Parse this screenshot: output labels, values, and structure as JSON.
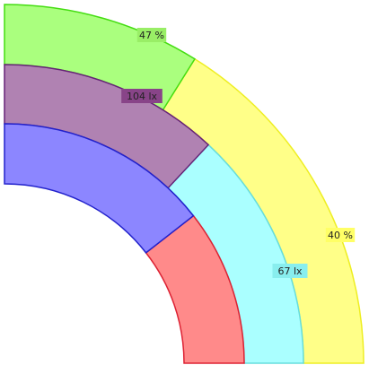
{
  "chart_data": {
    "type": "radial_gauge",
    "angle_range": [
      0,
      90
    ],
    "series": [
      {
        "ring": "outer",
        "value_pct": 47,
        "label": "47 %",
        "split_angle_deg": 58,
        "colors": {
          "first": "#aaff7e",
          "first_stroke": "#44dd11",
          "second": "#ffff88",
          "second_stroke": "#eeee22"
        },
        "label_bg": "#99ee66"
      },
      {
        "ring": "middle",
        "value": 104,
        "unit": "lx",
        "label": "104 lx",
        "second_label": "67 lx",
        "split_angle_deg": 47,
        "colors": {
          "first": "#b082b2",
          "first_stroke": "#662277",
          "second": "#aaffff",
          "second_stroke": "#66dddd"
        },
        "label_bg": "#884488",
        "second_label_bg": "#88eeee"
      },
      {
        "ring": "inner",
        "split_angle_deg": 38,
        "colors": {
          "first": "#8c86ff",
          "first_stroke": "#2222cc",
          "second": "#ff8a8a",
          "second_stroke": "#dd2233"
        }
      }
    ],
    "outer_second_label": "40 %"
  }
}
